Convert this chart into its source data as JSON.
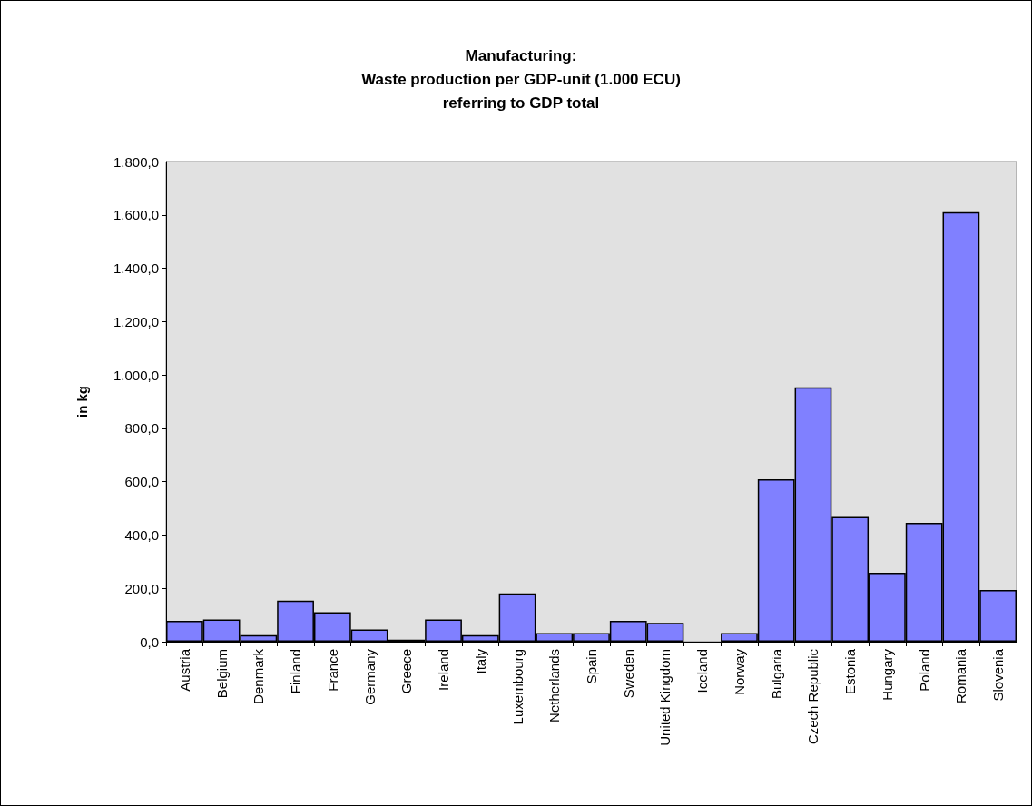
{
  "chart_data": {
    "type": "bar",
    "title": "Manufacturing:\nWaste production per GDP-unit (1.000 ECU)\nreferring to GDP total",
    "ylabel": "in kg",
    "categories": [
      "Austria",
      "Belgium",
      "Denmark",
      "Finland",
      "France",
      "Germany",
      "Greece",
      "Ireland",
      "Italy",
      "Luxembourg",
      "Netherlands",
      "Spain",
      "Sweden",
      "United Kingdom",
      "Iceland",
      "Norway",
      "Bulgaria",
      "Czech Republic",
      "Estonia",
      "Hungary",
      "Poland",
      "Romania",
      "Slovenia"
    ],
    "values": [
      78,
      83,
      25,
      154,
      111,
      46,
      8,
      83,
      25,
      181,
      32,
      32,
      78,
      71,
      null,
      32,
      609,
      954,
      468,
      259,
      446,
      1610,
      194
    ],
    "color": "#8080ff",
    "ylim": [
      0,
      1800
    ],
    "yticks": [
      {
        "value": 0,
        "label": "0,0"
      },
      {
        "value": 200,
        "label": "200,0"
      },
      {
        "value": 400,
        "label": "400,0"
      },
      {
        "value": 600,
        "label": "600,0"
      },
      {
        "value": 800,
        "label": "800,0"
      },
      {
        "value": 1000,
        "label": "1.000,0"
      },
      {
        "value": 1200,
        "label": "1.200,0"
      },
      {
        "value": 1400,
        "label": "1.400,0"
      },
      {
        "value": 1600,
        "label": "1.600,0"
      },
      {
        "value": 1800,
        "label": "1.800,0"
      }
    ],
    "grid": false
  }
}
